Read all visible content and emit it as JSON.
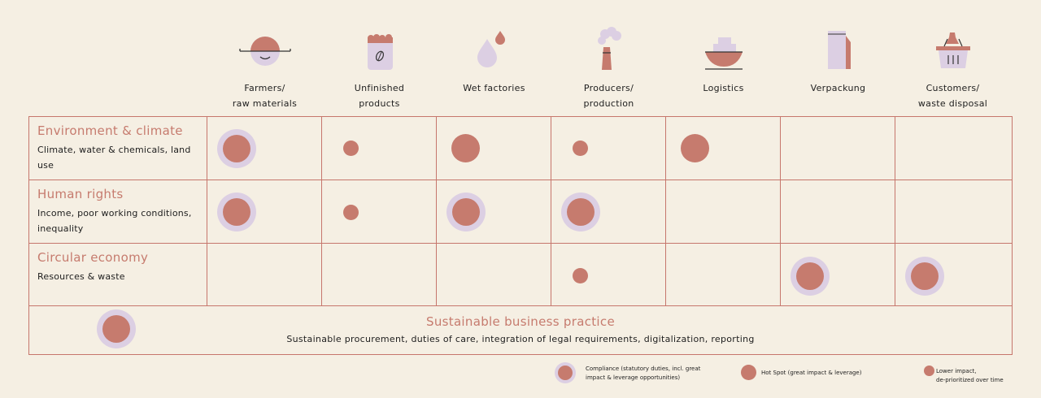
{
  "stages": [
    {
      "label_line1": "Farmers/",
      "label_line2": "raw materials",
      "icon": "farmer-icon"
    },
    {
      "label_line1": "Unfinished",
      "label_line2": "products",
      "icon": "coffee-sack-icon"
    },
    {
      "label_line1": "Wet factories",
      "label_line2": "",
      "icon": "water-drops-icon"
    },
    {
      "label_line1": "Producers/",
      "label_line2": "production",
      "icon": "factory-chimney-icon"
    },
    {
      "label_line1": "Logistics",
      "label_line2": "",
      "icon": "cargo-ship-icon"
    },
    {
      "label_line1": "Verpackung",
      "label_line2": "",
      "icon": "coffee-bag-icon"
    },
    {
      "label_line1": "Customers/",
      "label_line2": "waste disposal",
      "icon": "shopping-basket-icon"
    }
  ],
  "rows": [
    {
      "title": "Environment & climate",
      "subtitle": "Climate, water & chemicals, land use",
      "cells": [
        "compliance",
        "lower",
        "hotspot",
        "lower",
        "hotspot",
        "none",
        "none"
      ]
    },
    {
      "title": "Human rights",
      "subtitle": "Income, poor working conditions, inequality",
      "cells": [
        "compliance",
        "lower",
        "compliance",
        "compliance",
        "none",
        "none",
        "none"
      ]
    },
    {
      "title": "Circular economy",
      "subtitle": "Resources & waste",
      "cells": [
        "none",
        "none",
        "none",
        "lower",
        "none",
        "compliance",
        "compliance"
      ]
    }
  ],
  "sustainable": {
    "title": "Sustainable business practice",
    "subtitle": "Sustainable procurement, duties of care, integration of legal requirements, digitalization, reporting",
    "marker": "compliance"
  },
  "legend": {
    "compliance": {
      "line1": "Compliance (statutory duties, incl. great",
      "line2": "impact & leverage opportunities)"
    },
    "hotspot": {
      "line1": "Hot Spot (great impact & leverage)",
      "line2": ""
    },
    "lower": {
      "line1": "Lower impact,",
      "line2": "de-prioritized over time"
    }
  },
  "colors": {
    "accent": "#c67b6e",
    "halo": "#dccfe3",
    "background": "#f5efe3",
    "border": "#c6766c"
  }
}
